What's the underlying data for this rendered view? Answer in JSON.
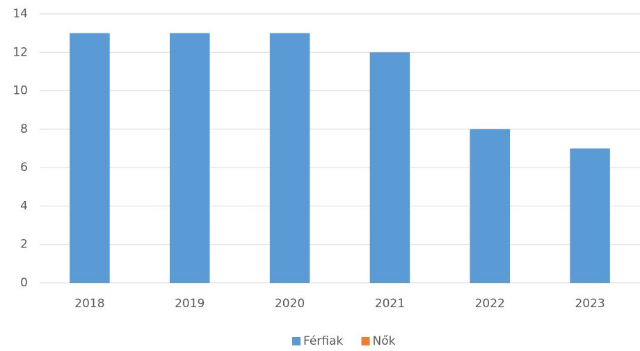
{
  "chart_data": {
    "type": "bar",
    "stacked": true,
    "categories": [
      "2018",
      "2019",
      "2020",
      "2021",
      "2022",
      "2023"
    ],
    "series": [
      {
        "name": "Férfiak",
        "color": "#5b9bd5",
        "values": [
          13,
          13,
          13,
          12,
          8,
          7
        ]
      },
      {
        "name": "Nők",
        "color": "#ed7d31",
        "values": [
          0,
          0,
          0,
          0,
          0,
          0
        ]
      }
    ],
    "ylim": [
      0,
      14
    ],
    "yticks": [
      0,
      2,
      4,
      6,
      8,
      10,
      12,
      14
    ],
    "grid": true,
    "legend": "bottom"
  }
}
